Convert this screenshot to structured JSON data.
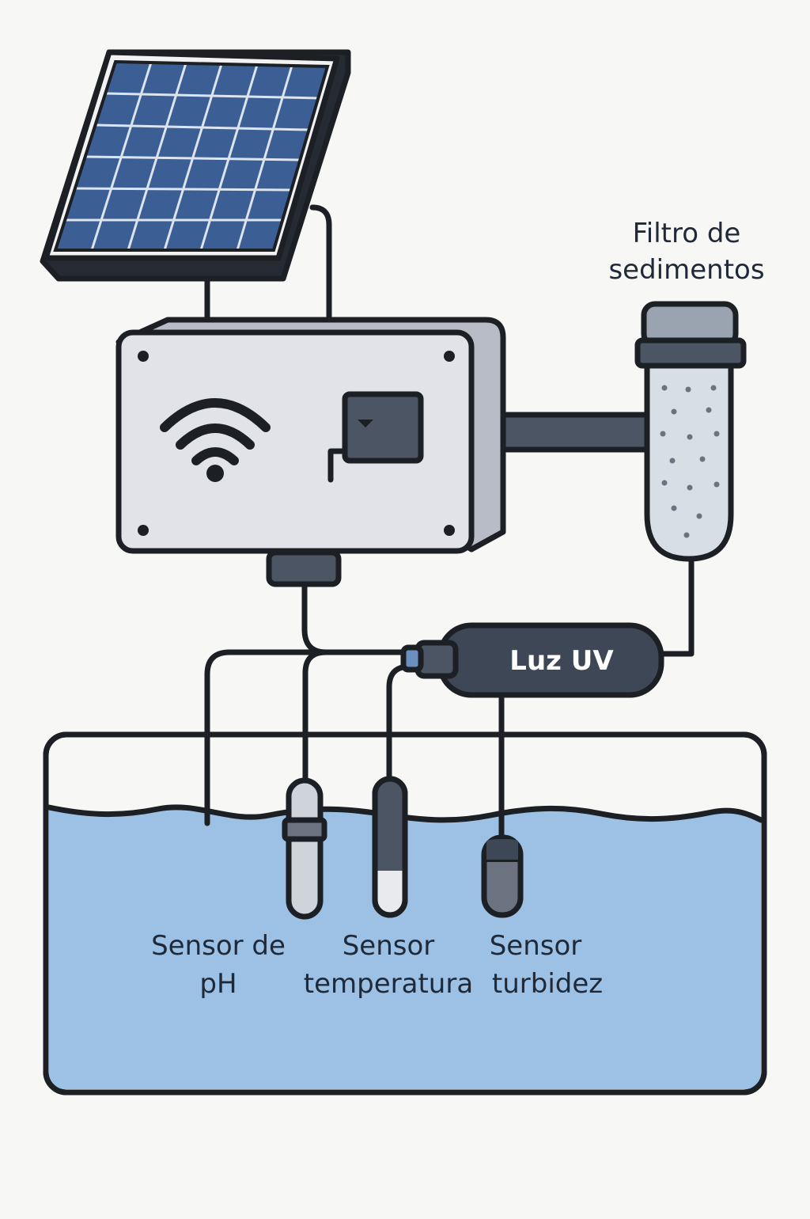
{
  "labels": {
    "filter": [
      "Filtro de",
      "sedimentos"
    ],
    "uv": "Luz UV",
    "ph": [
      "Sensor de",
      "pH"
    ],
    "temperature": [
      "Sensor",
      "temperatura"
    ],
    "turbidity": [
      "Sensor",
      "turbidez"
    ]
  },
  "icons": [
    "solar-panel-icon",
    "wifi-icon",
    "control-box-icon",
    "sediment-filter-icon",
    "uv-lamp-icon",
    "water-tank-icon"
  ],
  "colors": {
    "background": "#f7f7f5",
    "panel_cell": "#3b5f95",
    "panel_frame": "#1c1f24",
    "box_face": "#e1e3e8",
    "box_side": "#b8bcc6",
    "module": "#4b5563",
    "filter_body": "#d7dee6",
    "filter_cap": "#9aa3b0",
    "uv_body": "#3e4756",
    "water": "#9cc1e4",
    "outline": "#1c1f24"
  }
}
